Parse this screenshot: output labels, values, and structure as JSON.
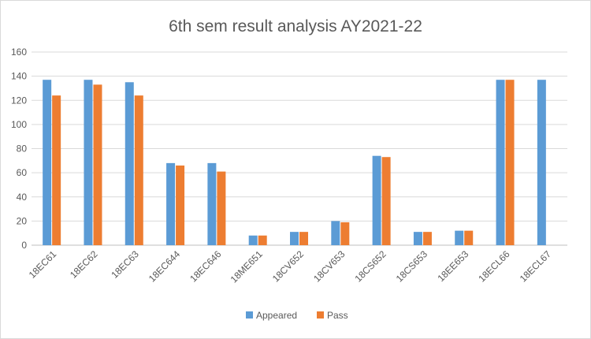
{
  "chart_data": {
    "type": "bar",
    "title": "6th sem result analysis AY2021-22",
    "xlabel": "",
    "ylabel": "",
    "ylim": [
      0,
      160
    ],
    "yticks": [
      0,
      20,
      40,
      60,
      80,
      100,
      120,
      140,
      160
    ],
    "grid": true,
    "legend_position": "bottom",
    "categories": [
      "18EC61",
      "18EC62",
      "18EC63",
      "18EC644",
      "18EC646",
      "18ME651",
      "18CV652",
      "18CV653",
      "18CS652",
      "18CS653",
      "18EE653",
      "18ECL66",
      "18ECL67"
    ],
    "series": [
      {
        "name": "Appeared",
        "color": "#5b9bd5",
        "values": [
          137,
          137,
          135,
          68,
          68,
          8,
          11,
          20,
          74,
          11,
          12,
          137,
          137
        ]
      },
      {
        "name": "Pass",
        "color": "#ed7d31",
        "values": [
          124,
          133,
          124,
          66,
          61,
          8,
          11,
          19,
          73,
          11,
          12,
          137,
          null
        ]
      }
    ]
  }
}
